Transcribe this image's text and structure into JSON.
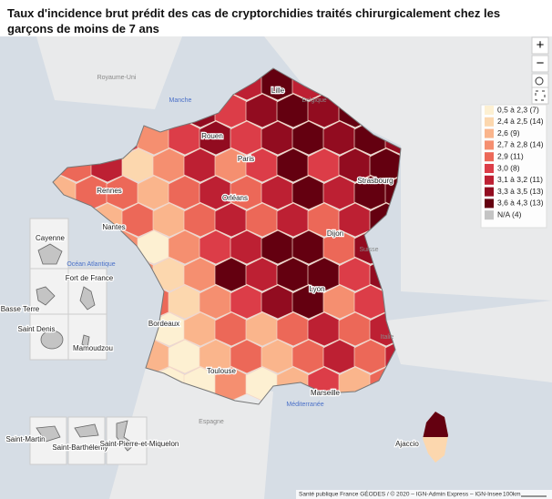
{
  "title": "Taux d'incidence brut prédit des cas de cryptorchidies traités chirurgicalement chez les garçons de moins de 7 ans",
  "controls": {
    "zoom_in": "+",
    "zoom_out": "−"
  },
  "legend": [
    {
      "label": "0,5 à 2,3 (7)",
      "color": "#fdf0d2"
    },
    {
      "label": "2,4 à 2,5 (14)",
      "color": "#fcd7ae"
    },
    {
      "label": "2,6 (9)",
      "color": "#fab58c"
    },
    {
      "label": "2,7 à 2,8 (14)",
      "color": "#f58f70"
    },
    {
      "label": "2,9 (11)",
      "color": "#ec6858"
    },
    {
      "label": "3,0 (8)",
      "color": "#dc3d48"
    },
    {
      "label": "3,1 à 3,2 (11)",
      "color": "#bd2033"
    },
    {
      "label": "3,3 à 3,5 (13)",
      "color": "#920c20"
    },
    {
      "label": "3,6 à 4,3 (13)",
      "color": "#640010"
    },
    {
      "label": "N/A (4)",
      "color": "#c4c4c4"
    }
  ],
  "cities": [
    "Lille",
    "Rouen",
    "Paris",
    "Rennes",
    "Orléans",
    "Strasbourg",
    "Nantes",
    "Dijon",
    "Lyon",
    "Bordeaux",
    "Toulouse",
    "Marseille",
    "Ajaccio"
  ],
  "places": [
    "Royaume-Uni",
    "Manche",
    "Belgique",
    "Suisse",
    "Italie",
    "Espagne",
    "Méditerranée",
    "Océan Atlantique"
  ],
  "insets": [
    "Cayenne",
    "Fort de France",
    "Basse Terre",
    "Saint Denis",
    "Mamoudzou",
    "Saint-Martin",
    "Saint-Barthélemy",
    "Saint-Pierre-et-Miquelon"
  ],
  "attribution": "Santé publique France GÉODES / © 2020 – IGN-Admin Express – IGN-Insee",
  "scale": "100km"
}
